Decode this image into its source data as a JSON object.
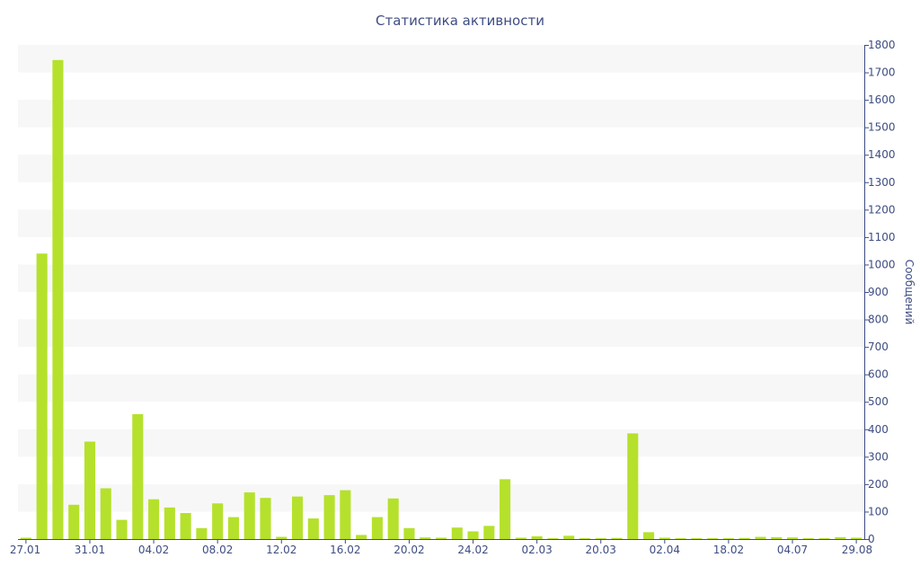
{
  "colors": {
    "bar": "#b5e12c",
    "band": "#f7f7f7",
    "axis": "#3e4d83",
    "text": "#3e4d83"
  },
  "chart_data": {
    "type": "bar",
    "title": "Статистика активности",
    "xlabel": "",
    "ylabel": "Сообщений",
    "y_axis_position": "right",
    "ylim": [
      0,
      1800
    ],
    "yticks": [
      0,
      100,
      200,
      300,
      400,
      500,
      600,
      700,
      800,
      900,
      1000,
      1100,
      1200,
      1300,
      1400,
      1500,
      1600,
      1700,
      1800
    ],
    "grid": "horizontal alternating bands",
    "legend": "none",
    "x_tick_labels": [
      "27.01",
      "31.01",
      "04.02",
      "08.02",
      "12.02",
      "16.02",
      "20.02",
      "24.02",
      "02.03",
      "20.03",
      "02.04",
      "18.02",
      "04.07",
      "29.08"
    ],
    "values": [
      5,
      1040,
      1745,
      125,
      355,
      185,
      70,
      455,
      145,
      115,
      95,
      40,
      130,
      80,
      170,
      150,
      8,
      155,
      75,
      160,
      178,
      15,
      80,
      148,
      40,
      6,
      5,
      42,
      28,
      48,
      218,
      5,
      10,
      3,
      12,
      3,
      3,
      4,
      385,
      25,
      5,
      3,
      3,
      3,
      3,
      4,
      8,
      7,
      6,
      3,
      3,
      7,
      5
    ]
  }
}
